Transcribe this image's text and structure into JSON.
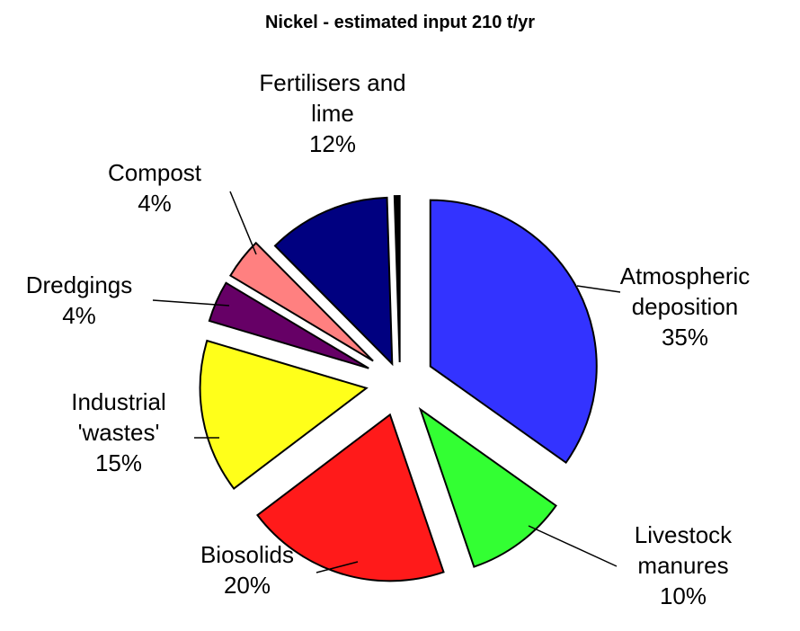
{
  "chart_data": {
    "type": "pie",
    "title": "Nickel - estimated input 210 t/yr",
    "categories": [
      "Atmospheric deposition",
      "Livestock manures",
      "Biosolids",
      "Industrial 'wastes'",
      "Dredgings",
      "Compost",
      "Fertilisers and lime",
      null
    ],
    "values": [
      35,
      10,
      20,
      15,
      4,
      4,
      12,
      0.5
    ],
    "value_labels": [
      "35%",
      "10%",
      "20%",
      "15%",
      "4%",
      "4%",
      "12%",
      null
    ],
    "colors": [
      "#3333ff",
      "#33ff33",
      "#ff1a1a",
      "#ffff1a",
      "#660066",
      "#ff8080",
      "#000080",
      "#000000"
    ]
  }
}
